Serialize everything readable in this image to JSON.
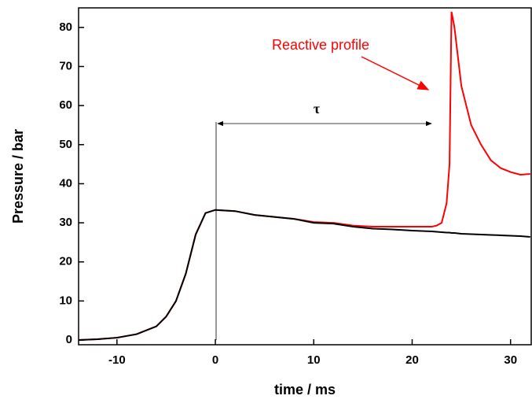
{
  "chart_data": {
    "type": "line",
    "x_label": "time / ms",
    "y_label": "Pressure / bar",
    "annotations": [
      "Reactive profile",
      "τ"
    ],
    "x": [
      -13.9,
      -12,
      -10,
      -8,
      -6,
      -5,
      -4,
      -3,
      -2,
      -1,
      0,
      2,
      4,
      6,
      8,
      10,
      12,
      14,
      16,
      18,
      20,
      22,
      22.5,
      23,
      23.5,
      23.8,
      24,
      24.3,
      25,
      26,
      27,
      28,
      29,
      30,
      31,
      32
    ],
    "series": [
      {
        "color": "#ff0000",
        "values": [
          0,
          0.2,
          0.6,
          1.5,
          3.5,
          6,
          10,
          17,
          27,
          32.5,
          33.3,
          33,
          32,
          31.5,
          31,
          30.2,
          30,
          29.3,
          29,
          29,
          29,
          29,
          29.3,
          30,
          35,
          45,
          84,
          80,
          65,
          55,
          50,
          46,
          44,
          43,
          42.3,
          42.5
        ]
      },
      {
        "color": "#000000",
        "values": [
          0,
          0.2,
          0.6,
          1.5,
          3.5,
          6,
          10,
          17,
          27,
          32.5,
          33.3,
          33,
          32,
          31.5,
          31,
          30,
          29.8,
          29,
          28.5,
          28.3,
          28,
          27.8,
          27.7,
          27.6,
          27.5,
          27.5,
          27.4,
          27.4,
          27.2,
          27.1,
          27,
          26.9,
          26.8,
          26.7,
          26.6,
          26.4
        ]
      }
    ],
    "xlim": [
      -13.9,
      32.1
    ],
    "ylim": [
      -1.2,
      85
    ],
    "xticks": [
      -10,
      0,
      10,
      20,
      30
    ],
    "yticks": [
      0,
      10,
      20,
      30,
      40,
      50,
      60,
      70,
      80
    ]
  }
}
